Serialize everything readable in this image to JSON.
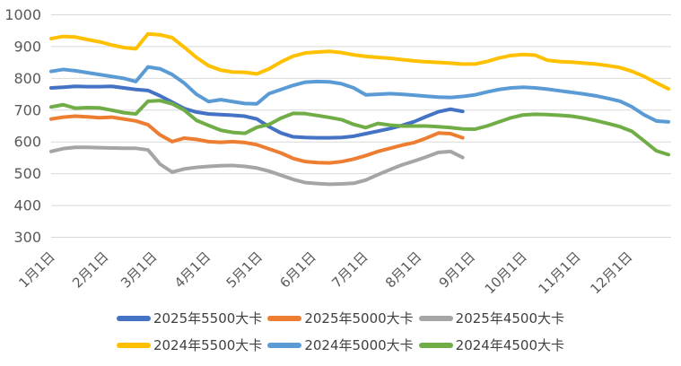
{
  "chart_data": {
    "type": "line",
    "title": "",
    "grid": true,
    "grid_color": "#D9D9D9",
    "axis_text_color": "#595959",
    "legend_text_color": "#404040",
    "legend_position": "bottom",
    "y_axis": {
      "min": 300,
      "max": 1000,
      "step": 100,
      "ticks": [
        1000,
        900,
        800,
        700,
        600,
        500,
        400,
        300
      ]
    },
    "x_axis": {
      "unit": "weekly points from Jan 1",
      "tick_labels": [
        "1月1日",
        "2月1日",
        "3月1日",
        "4月1日",
        "5月1日",
        "6月1日",
        "7月1日",
        "8月1日",
        "9月1日",
        "10月1日",
        "11月1日",
        "12月1日"
      ]
    },
    "series": [
      {
        "name": "2025年5500大卡",
        "color": "#4472C4",
        "values": [
          770,
          772,
          775,
          774,
          774,
          775,
          770,
          765,
          762,
          745,
          725,
          705,
          694,
          688,
          686,
          684,
          681,
          672,
          648,
          628,
          616,
          614,
          613,
          613,
          614,
          618,
          626,
          634,
          642,
          652,
          664,
          680,
          695,
          703,
          696
        ]
      },
      {
        "name": "2025年5000大卡",
        "color": "#ED7D31",
        "values": [
          672,
          678,
          681,
          679,
          676,
          678,
          672,
          666,
          654,
          622,
          601,
          612,
          608,
          601,
          599,
          601,
          598,
          591,
          578,
          565,
          548,
          538,
          535,
          534,
          538,
          546,
          557,
          570,
          580,
          590,
          598,
          612,
          628,
          626,
          613
        ]
      },
      {
        "name": "2025年4500大卡",
        "color": "#A5A5A5",
        "values": [
          570,
          579,
          583,
          583,
          582,
          581,
          580,
          580,
          575,
          530,
          505,
          515,
          520,
          523,
          525,
          526,
          523,
          518,
          508,
          495,
          482,
          472,
          469,
          467,
          468,
          470,
          480,
          497,
          513,
          528,
          540,
          553,
          567,
          570,
          551
        ]
      },
      {
        "name": "2024年5500大卡",
        "color": "#FFC000",
        "values": [
          925,
          932,
          930,
          922,
          915,
          905,
          897,
          893,
          940,
          937,
          928,
          898,
          866,
          840,
          826,
          820,
          819,
          814,
          830,
          852,
          870,
          880,
          883,
          885,
          881,
          874,
          869,
          866,
          863,
          859,
          855,
          852,
          850,
          848,
          845,
          845,
          853,
          864,
          872,
          875,
          873,
          857,
          853,
          851,
          848,
          845,
          840,
          834,
          822,
          806,
          786,
          767
        ]
      },
      {
        "name": "2024年5000大卡",
        "color": "#5B9BD5",
        "values": [
          822,
          828,
          824,
          818,
          812,
          806,
          800,
          790,
          836,
          830,
          812,
          785,
          750,
          727,
          733,
          727,
          721,
          720,
          752,
          765,
          778,
          788,
          790,
          789,
          783,
          770,
          748,
          750,
          752,
          750,
          747,
          744,
          741,
          740,
          743,
          748,
          757,
          765,
          770,
          772,
          770,
          766,
          761,
          756,
          751,
          745,
          737,
          728,
          710,
          685,
          666,
          663
        ]
      },
      {
        "name": "2024年4500大卡",
        "color": "#70AD47",
        "values": [
          710,
          717,
          706,
          708,
          707,
          700,
          692,
          688,
          728,
          730,
          720,
          700,
          668,
          652,
          637,
          630,
          627,
          646,
          655,
          675,
          690,
          689,
          683,
          677,
          670,
          655,
          645,
          658,
          653,
          650,
          650,
          650,
          648,
          645,
          641,
          640,
          650,
          663,
          676,
          685,
          687,
          686,
          684,
          681,
          675,
          667,
          658,
          648,
          633,
          603,
          572,
          560
        ]
      }
    ]
  }
}
